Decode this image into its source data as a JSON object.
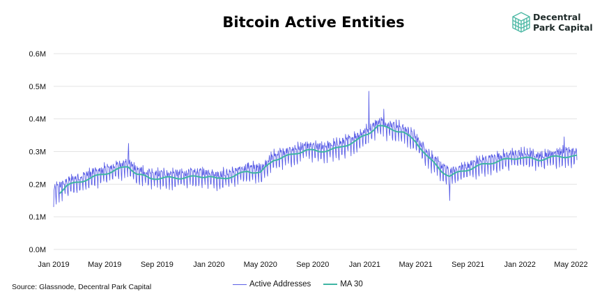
{
  "header": {
    "title": "Bitcoin Active Entities",
    "brand_line1": "Decentral",
    "brand_line2": "Park Capital"
  },
  "footer": {
    "source": "Source: Glassnode, Decentral Park Capital"
  },
  "colors": {
    "active_addresses": "#5b5fe6",
    "ma30": "#3fb5a3",
    "grid": "#e3e3e3",
    "logo": "#4fb9a6"
  },
  "chart_data": {
    "type": "line",
    "title": "Bitcoin Active Entities",
    "xlabel": "",
    "ylabel": "",
    "x_range": [
      "2019-01-01",
      "2022-05-15"
    ],
    "ylim": [
      0,
      600000
    ],
    "y_ticks": [
      0,
      100000,
      200000,
      300000,
      400000,
      500000,
      600000
    ],
    "y_tick_labels": [
      "0.0M",
      "0.1M",
      "0.2M",
      "0.3M",
      "0.4M",
      "0.5M",
      "0.6M"
    ],
    "x_ticks": [
      "2019-01-01",
      "2019-05-01",
      "2019-09-01",
      "2020-01-01",
      "2020-05-01",
      "2020-09-01",
      "2021-01-01",
      "2021-05-01",
      "2021-09-01",
      "2022-01-01",
      "2022-05-01"
    ],
    "x_tick_labels": [
      "Jan 2019",
      "May 2019",
      "Sep 2019",
      "Jan 2020",
      "May 2020",
      "Sep 2020",
      "Jan 2021",
      "May 2021",
      "Sep 2021",
      "Jan 2022",
      "May 2022"
    ],
    "grid": "horizontal",
    "legend_position": "bottom",
    "series": [
      {
        "name": "Active Addresses",
        "frequency": "daily",
        "weekly_swing_approx": 35000,
        "trend_x": [
          "2019-01-01",
          "2019-02-01",
          "2019-04-01",
          "2019-06-01",
          "2019-06-25",
          "2019-07-15",
          "2019-08-15",
          "2019-11-01",
          "2020-01-01",
          "2020-01-20",
          "2020-03-01",
          "2020-04-01",
          "2020-05-01",
          "2020-06-01",
          "2020-07-15",
          "2020-08-15",
          "2020-09-15",
          "2020-11-01",
          "2020-12-15",
          "2021-01-10",
          "2021-02-01",
          "2021-03-01",
          "2021-04-01",
          "2021-05-01",
          "2021-06-01",
          "2021-07-01",
          "2021-07-20",
          "2021-08-15",
          "2021-10-01",
          "2021-11-15",
          "2022-01-01",
          "2022-02-15",
          "2022-04-01",
          "2022-05-15"
        ],
        "trend_y": [
          170000,
          195000,
          220000,
          245000,
          255000,
          232000,
          218000,
          220000,
          225000,
          215000,
          225000,
          240000,
          235000,
          275000,
          290000,
          305000,
          300000,
          310000,
          335000,
          355000,
          380000,
          370000,
          360000,
          330000,
          280000,
          240000,
          225000,
          238000,
          258000,
          272000,
          282000,
          275000,
          285000,
          285000
        ],
        "notable_points": [
          {
            "x": "2019-06-26",
            "y": 325000
          },
          {
            "x": "2021-01-11",
            "y": 485000
          },
          {
            "x": "2021-02-15",
            "y": 430000
          },
          {
            "x": "2021-07-20",
            "y": 150000
          },
          {
            "x": "2022-04-15",
            "y": 345000
          }
        ]
      },
      {
        "name": "MA 30",
        "x": [
          "2019-01-15",
          "2019-02-01",
          "2019-04-01",
          "2019-06-01",
          "2019-06-25",
          "2019-07-15",
          "2019-08-15",
          "2019-11-01",
          "2020-01-01",
          "2020-01-20",
          "2020-03-01",
          "2020-04-01",
          "2020-05-01",
          "2020-06-01",
          "2020-07-15",
          "2020-08-15",
          "2020-09-15",
          "2020-11-01",
          "2020-12-15",
          "2021-01-10",
          "2021-02-01",
          "2021-03-01",
          "2021-04-01",
          "2021-05-01",
          "2021-06-01",
          "2021-07-01",
          "2021-07-20",
          "2021-08-15",
          "2021-10-01",
          "2021-11-15",
          "2022-01-01",
          "2022-02-15",
          "2022-04-01",
          "2022-05-15"
        ],
        "y": [
          175000,
          195000,
          220000,
          245000,
          255000,
          232000,
          218000,
          220000,
          225000,
          215000,
          225000,
          240000,
          235000,
          275000,
          290000,
          305000,
          300000,
          310000,
          335000,
          355000,
          380000,
          370000,
          360000,
          330000,
          280000,
          240000,
          225000,
          238000,
          258000,
          272000,
          282000,
          275000,
          285000,
          285000
        ]
      }
    ]
  }
}
